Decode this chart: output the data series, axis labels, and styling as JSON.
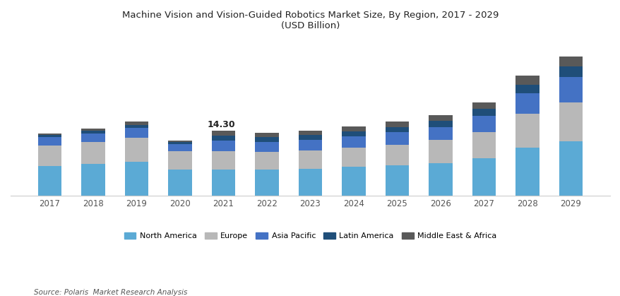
{
  "years": [
    "2017",
    "2018",
    "2019",
    "2020",
    "2021",
    "2022",
    "2023",
    "2024",
    "2025",
    "2026",
    "2027",
    "2028",
    "2029"
  ],
  "north_america": [
    6.5,
    7.0,
    7.5,
    5.8,
    5.8,
    5.7,
    5.9,
    6.3,
    6.7,
    7.2,
    8.2,
    10.5,
    12.0
  ],
  "europe": [
    4.5,
    4.8,
    5.2,
    4.0,
    4.0,
    3.9,
    4.0,
    4.2,
    4.5,
    5.0,
    5.8,
    7.5,
    8.5
  ],
  "asia_pacific": [
    1.8,
    1.9,
    2.2,
    1.5,
    2.3,
    2.2,
    2.3,
    2.5,
    2.7,
    2.9,
    3.5,
    4.5,
    5.5
  ],
  "latin_america": [
    0.5,
    0.55,
    0.65,
    0.45,
    1.1,
    1.0,
    1.05,
    1.1,
    1.15,
    1.25,
    1.5,
    1.9,
    2.3
  ],
  "middle_east": [
    0.4,
    0.45,
    0.65,
    0.35,
    1.1,
    1.0,
    1.05,
    1.1,
    1.15,
    1.25,
    1.5,
    1.9,
    2.3
  ],
  "annotation_year": "2021",
  "annotation_text": "14.30",
  "colors": {
    "north_america": "#5baad5",
    "europe": "#b8b8b8",
    "asia_pacific": "#4472c4",
    "latin_america": "#1f4e79",
    "middle_east": "#595959"
  },
  "title_line1": "Machine Vision and Vision-Guided Robotics Market Size, By Region, 2017 - 2029",
  "title_line2": "(USD Billion)",
  "legend_labels": [
    "North America",
    "Europe",
    "Asia Pacific",
    "Latin America",
    "Middle East & Africa"
  ],
  "source_text": "Source: Polaris  Market Research Analysis",
  "background_color": "#ffffff",
  "bar_width": 0.55,
  "ylim_max": 35
}
